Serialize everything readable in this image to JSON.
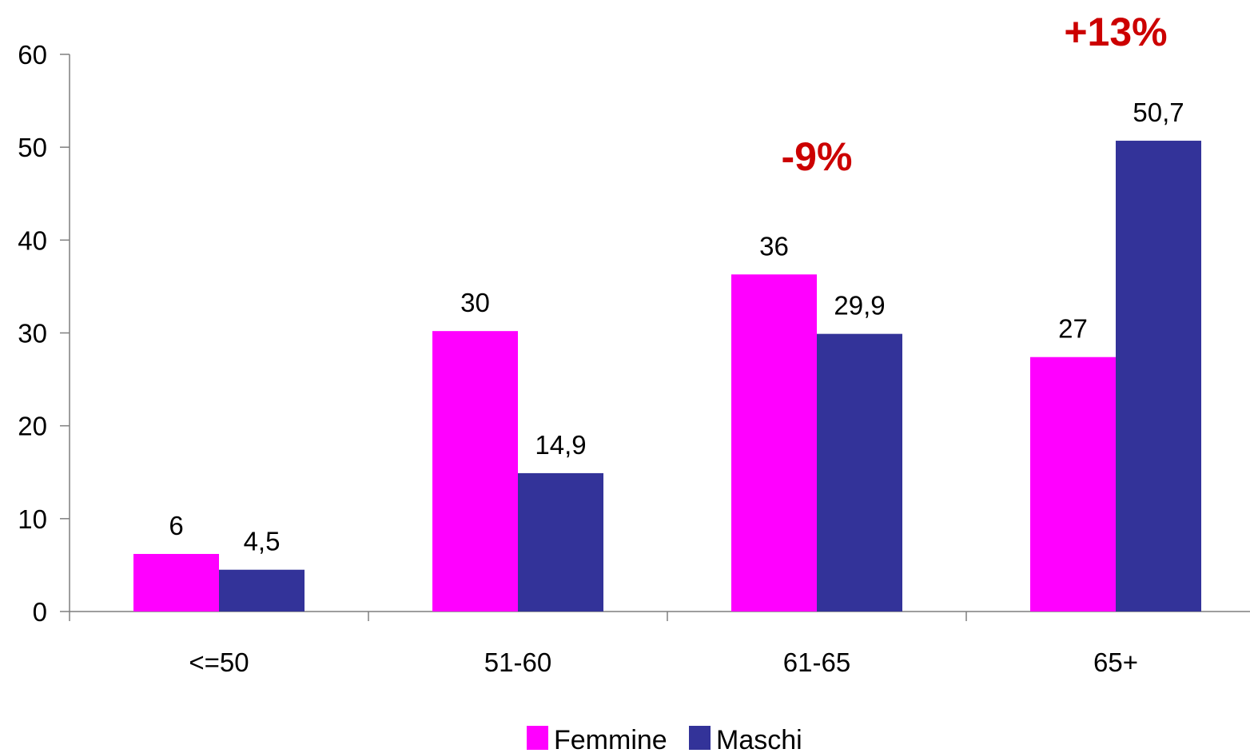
{
  "chart_data": {
    "type": "bar",
    "categories": [
      "<=50",
      "51-60",
      "61-65",
      "65+"
    ],
    "series": [
      {
        "name": "Femmine",
        "values": [
          6.2,
          30.2,
          36.3,
          27.4
        ],
        "labels": [
          "6",
          "30",
          "36",
          "27"
        ],
        "color": "#ff00ff"
      },
      {
        "name": "Maschi",
        "values": [
          4.5,
          14.9,
          29.9,
          50.7
        ],
        "labels": [
          "4,5",
          "14,9",
          "29,9",
          "50,7"
        ],
        "color": "#333399"
      }
    ],
    "ylim": [
      0,
      60
    ],
    "yticks": [
      0,
      10,
      20,
      30,
      40,
      50,
      60
    ],
    "grid": false,
    "legend_position": "bottom",
    "annotations": [
      {
        "text": "-9%",
        "category": "61-65",
        "color": "#cc0000"
      },
      {
        "text": "+13%",
        "category": "65+",
        "color": "#cc0000"
      }
    ]
  }
}
